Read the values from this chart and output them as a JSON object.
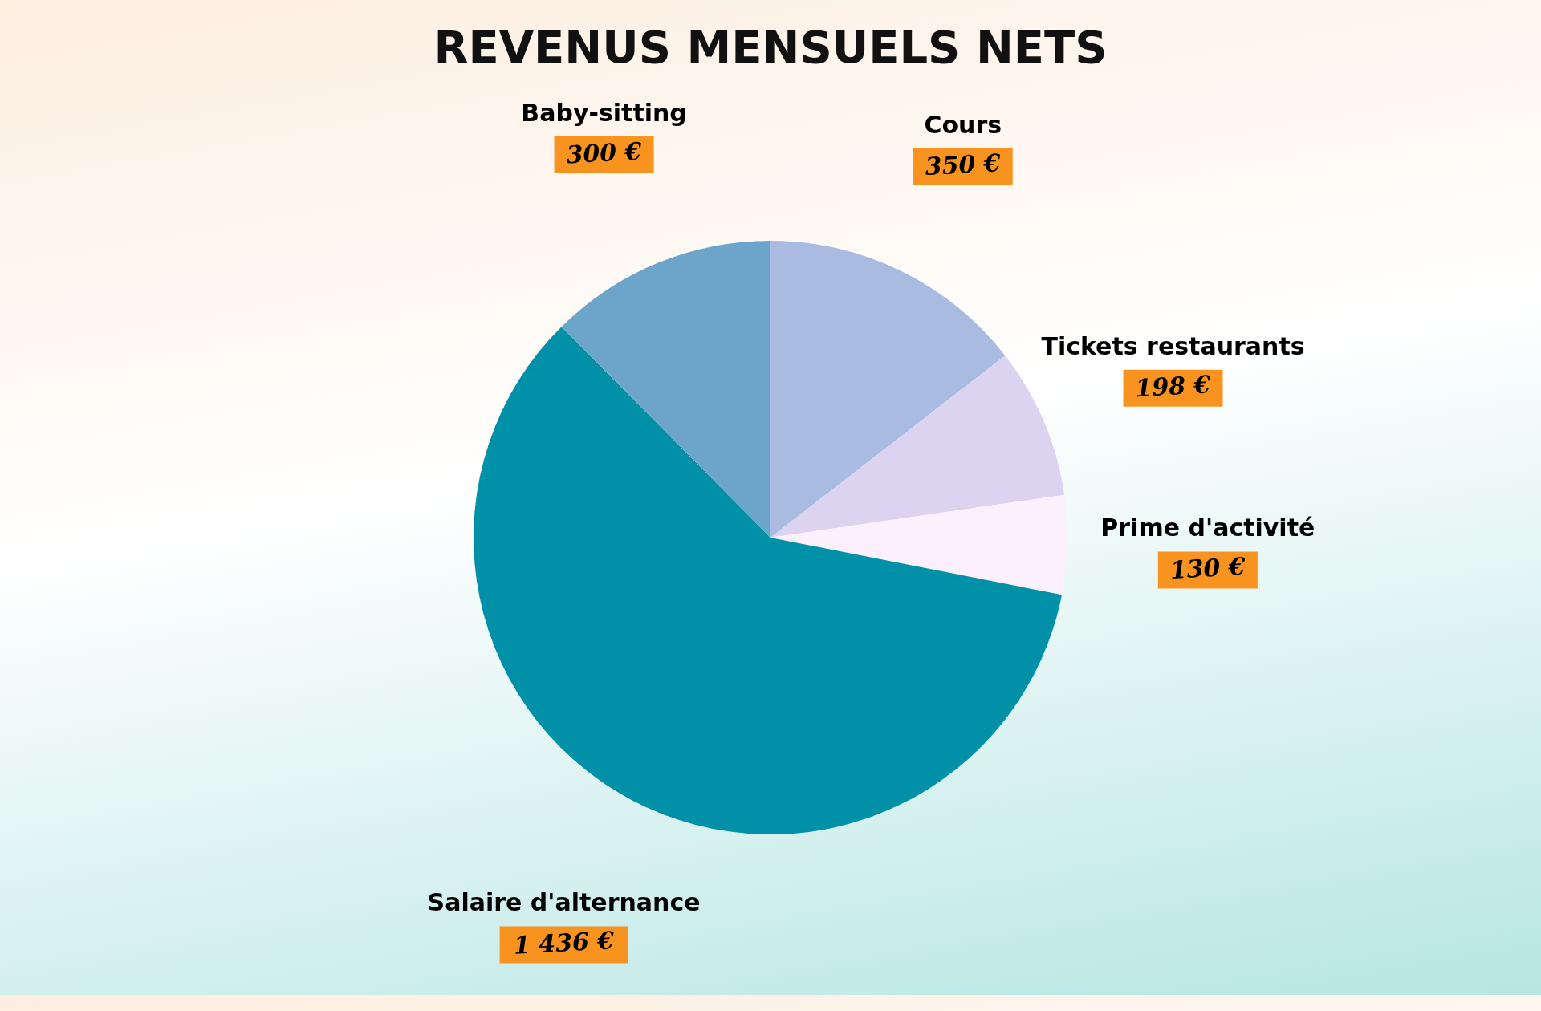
{
  "chart_data": {
    "type": "pie",
    "title": "REVENUS MENSUELS NETS",
    "categories": [
      "Cours",
      "Tickets restaurants",
      "Prime d'activité",
      "Salaire d'alternance",
      "Baby-sitting"
    ],
    "values": [
      350,
      198,
      130,
      1436,
      300
    ],
    "value_labels": [
      "350 €",
      "198 €",
      "130 €",
      "1 436 €",
      "300 €"
    ],
    "colors": [
      "#a9bbe1",
      "#dcd3f0",
      "#fcf0fc",
      "#0091a9",
      "#6da5ca"
    ],
    "legend": false
  }
}
